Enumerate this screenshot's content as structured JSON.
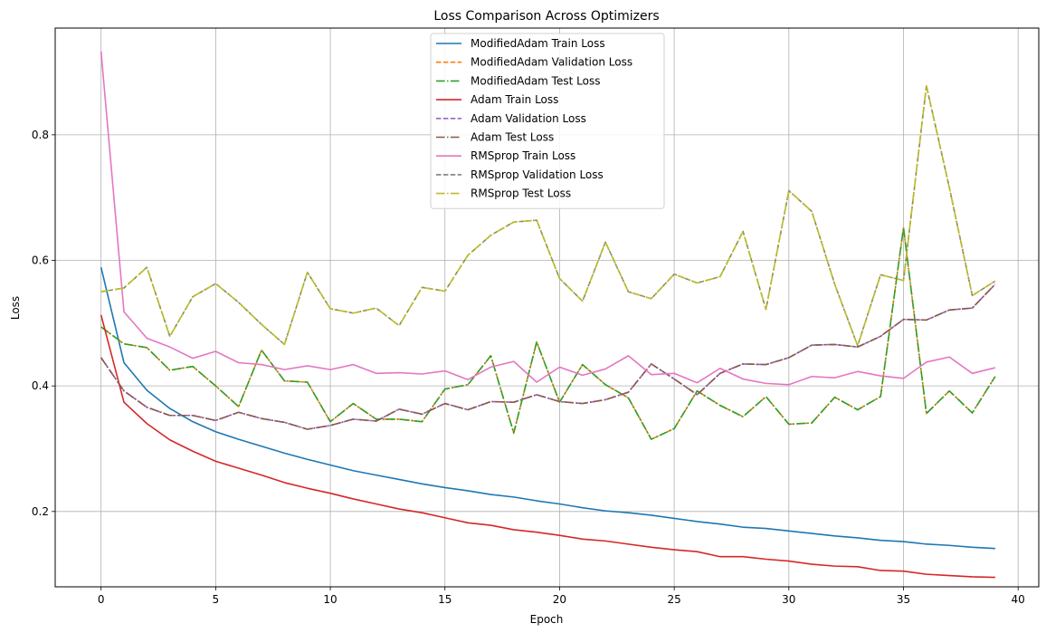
{
  "chart_data": {
    "type": "line",
    "title": "Loss Comparison Across Optimizers",
    "xlabel": "Epoch",
    "ylabel": "Loss",
    "xlim": [
      -2,
      40.9
    ],
    "ylim": [
      0.08,
      0.97
    ],
    "xticks": [
      0,
      5,
      10,
      15,
      20,
      25,
      30,
      35,
      40
    ],
    "yticks": [
      0.2,
      0.4,
      0.6,
      0.8
    ],
    "grid": true,
    "legend_position": "top-center",
    "x": [
      0,
      1,
      2,
      3,
      4,
      5,
      6,
      7,
      8,
      9,
      10,
      11,
      12,
      13,
      14,
      15,
      16,
      17,
      18,
      19,
      20,
      21,
      22,
      23,
      24,
      25,
      26,
      27,
      28,
      29,
      30,
      31,
      32,
      33,
      34,
      35,
      36,
      37,
      38,
      39
    ],
    "series": [
      {
        "name": "ModifiedAdam Train Loss",
        "color": "#1f77b4",
        "dash": "solid",
        "values": [
          0.589,
          0.437,
          0.393,
          0.364,
          0.343,
          0.327,
          0.315,
          0.304,
          0.293,
          0.283,
          0.274,
          0.265,
          0.258,
          0.251,
          0.244,
          0.238,
          0.233,
          0.227,
          0.223,
          0.217,
          0.212,
          0.206,
          0.201,
          0.198,
          0.194,
          0.189,
          0.184,
          0.18,
          0.175,
          0.173,
          0.169,
          0.165,
          0.161,
          0.158,
          0.154,
          0.152,
          0.148,
          0.146,
          0.143,
          0.141
        ]
      },
      {
        "name": "ModifiedAdam Validation Loss",
        "color": "#ff7f0e",
        "dash": "dashed",
        "values": [
          0.494,
          0.467,
          0.461,
          0.425,
          0.431,
          0.4,
          0.367,
          0.457,
          0.408,
          0.406,
          0.343,
          0.372,
          0.347,
          0.347,
          0.343,
          0.395,
          0.402,
          0.448,
          0.325,
          0.47,
          0.374,
          0.434,
          0.402,
          0.381,
          0.315,
          0.332,
          0.392,
          0.369,
          0.351,
          0.383,
          0.339,
          0.341,
          0.382,
          0.362,
          0.383,
          0.652,
          0.356,
          0.392,
          0.357,
          0.415
        ]
      },
      {
        "name": "ModifiedAdam Test Loss",
        "color": "#2ca02c",
        "dash": "dashdot",
        "values": [
          0.494,
          0.467,
          0.461,
          0.425,
          0.431,
          0.4,
          0.367,
          0.457,
          0.408,
          0.406,
          0.343,
          0.372,
          0.347,
          0.347,
          0.343,
          0.395,
          0.402,
          0.448,
          0.325,
          0.47,
          0.374,
          0.434,
          0.402,
          0.381,
          0.315,
          0.332,
          0.392,
          0.369,
          0.351,
          0.383,
          0.339,
          0.341,
          0.382,
          0.362,
          0.383,
          0.652,
          0.356,
          0.392,
          0.357,
          0.415
        ]
      },
      {
        "name": "Adam Train Loss",
        "color": "#d62728",
        "dash": "solid",
        "values": [
          0.513,
          0.374,
          0.34,
          0.314,
          0.296,
          0.28,
          0.269,
          0.258,
          0.246,
          0.237,
          0.229,
          0.22,
          0.212,
          0.204,
          0.198,
          0.19,
          0.182,
          0.178,
          0.171,
          0.167,
          0.162,
          0.156,
          0.153,
          0.148,
          0.143,
          0.139,
          0.136,
          0.128,
          0.128,
          0.124,
          0.121,
          0.116,
          0.113,
          0.112,
          0.106,
          0.105,
          0.1,
          0.098,
          0.096,
          0.095
        ]
      },
      {
        "name": "Adam Validation Loss",
        "color": "#9467bd",
        "dash": "dashed",
        "values": [
          0.445,
          0.392,
          0.366,
          0.353,
          0.353,
          0.345,
          0.358,
          0.348,
          0.342,
          0.331,
          0.337,
          0.347,
          0.344,
          0.363,
          0.355,
          0.372,
          0.362,
          0.375,
          0.374,
          0.386,
          0.375,
          0.372,
          0.378,
          0.39,
          0.435,
          0.411,
          0.386,
          0.42,
          0.435,
          0.434,
          0.445,
          0.465,
          0.466,
          0.462,
          0.479,
          0.506,
          0.505,
          0.521,
          0.524,
          0.562
        ]
      },
      {
        "name": "Adam Test Loss",
        "color": "#8c564b",
        "dash": "dashdot",
        "values": [
          0.445,
          0.392,
          0.366,
          0.353,
          0.353,
          0.345,
          0.358,
          0.348,
          0.342,
          0.331,
          0.337,
          0.347,
          0.344,
          0.363,
          0.355,
          0.372,
          0.362,
          0.375,
          0.374,
          0.386,
          0.375,
          0.372,
          0.378,
          0.39,
          0.435,
          0.411,
          0.386,
          0.42,
          0.435,
          0.434,
          0.445,
          0.465,
          0.466,
          0.462,
          0.479,
          0.506,
          0.505,
          0.521,
          0.524,
          0.562
        ]
      },
      {
        "name": "RMSprop Train Loss",
        "color": "#e377c2",
        "dash": "solid",
        "values": [
          0.933,
          0.518,
          0.476,
          0.462,
          0.444,
          0.455,
          0.437,
          0.434,
          0.426,
          0.432,
          0.426,
          0.434,
          0.42,
          0.421,
          0.419,
          0.424,
          0.41,
          0.43,
          0.439,
          0.406,
          0.43,
          0.417,
          0.427,
          0.448,
          0.418,
          0.42,
          0.405,
          0.428,
          0.411,
          0.404,
          0.402,
          0.415,
          0.413,
          0.423,
          0.416,
          0.412,
          0.438,
          0.446,
          0.42,
          0.429
        ]
      },
      {
        "name": "RMSprop Validation Loss",
        "color": "#7f7f7f",
        "dash": "dashed",
        "values": [
          0.55,
          0.556,
          0.589,
          0.479,
          0.542,
          0.563,
          0.533,
          0.498,
          0.466,
          0.581,
          0.523,
          0.516,
          0.524,
          0.496,
          0.557,
          0.551,
          0.608,
          0.64,
          0.661,
          0.664,
          0.571,
          0.535,
          0.629,
          0.55,
          0.539,
          0.578,
          0.564,
          0.574,
          0.646,
          0.522,
          0.711,
          0.678,
          0.562,
          0.464,
          0.577,
          0.568,
          0.878,
          0.716,
          0.544,
          0.567
        ]
      },
      {
        "name": "RMSprop Test Loss",
        "color": "#bcbd22",
        "dash": "dashdot",
        "values": [
          0.55,
          0.556,
          0.589,
          0.479,
          0.542,
          0.563,
          0.533,
          0.498,
          0.466,
          0.581,
          0.523,
          0.516,
          0.524,
          0.496,
          0.557,
          0.551,
          0.608,
          0.64,
          0.661,
          0.664,
          0.571,
          0.535,
          0.629,
          0.55,
          0.539,
          0.578,
          0.564,
          0.574,
          0.646,
          0.522,
          0.711,
          0.678,
          0.562,
          0.464,
          0.577,
          0.568,
          0.878,
          0.716,
          0.544,
          0.567
        ]
      }
    ]
  }
}
